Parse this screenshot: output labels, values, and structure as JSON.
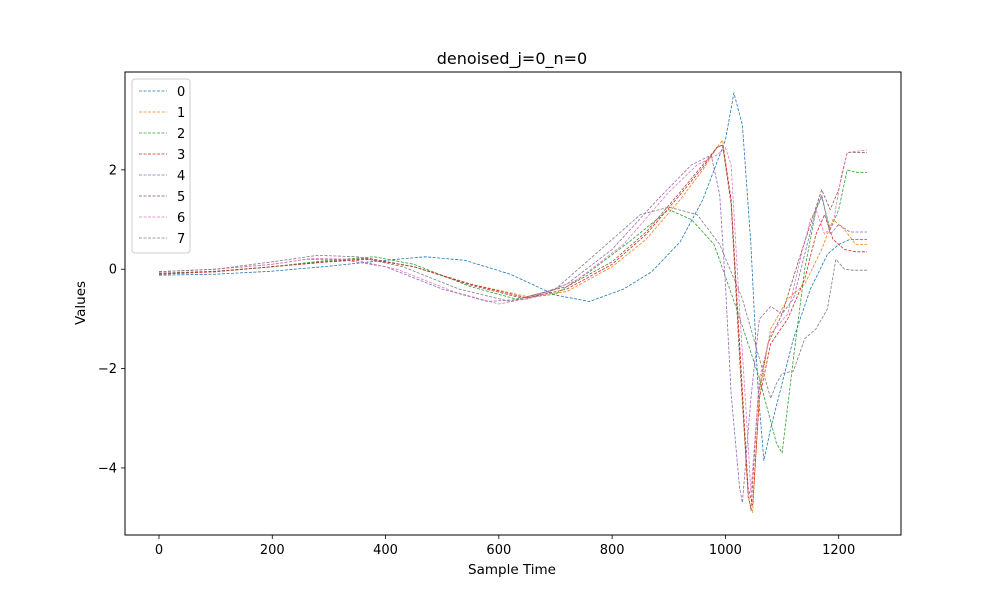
{
  "chart_data": {
    "type": "line",
    "title": "denoised_j=0_n=0",
    "xlabel": "Sample Time",
    "ylabel": "Values",
    "xlim": [
      -60,
      1310
    ],
    "ylim": [
      -5.35,
      3.97
    ],
    "xticks": [
      0,
      200,
      400,
      600,
      800,
      1000,
      1200
    ],
    "xtick_labels": [
      "0",
      "200",
      "400",
      "600",
      "800",
      "1000",
      "1200"
    ],
    "yticks": [
      2,
      0,
      -2,
      -4
    ],
    "ytick_labels": [
      "2",
      "0",
      "−2",
      "−4"
    ],
    "grid": false,
    "legend_position": "top-left",
    "line_style": "dashed",
    "series": [
      {
        "name": "0",
        "color": "#1f77b4",
        "points": [
          [
            0,
            -0.12
          ],
          [
            100,
            -0.1
          ],
          [
            200,
            -0.04
          ],
          [
            300,
            0.06
          ],
          [
            400,
            0.18
          ],
          [
            470,
            0.25
          ],
          [
            540,
            0.18
          ],
          [
            620,
            -0.1
          ],
          [
            700,
            -0.52
          ],
          [
            760,
            -0.65
          ],
          [
            820,
            -0.4
          ],
          [
            870,
            -0.05
          ],
          [
            920,
            0.55
          ],
          [
            960,
            1.4
          ],
          [
            1000,
            2.6
          ],
          [
            1015,
            3.55
          ],
          [
            1030,
            2.9
          ],
          [
            1045,
            0.5
          ],
          [
            1058,
            -2.5
          ],
          [
            1068,
            -3.85
          ],
          [
            1080,
            -3.2
          ],
          [
            1100,
            -2.3
          ],
          [
            1120,
            -1.4
          ],
          [
            1150,
            -0.4
          ],
          [
            1180,
            0.3
          ],
          [
            1200,
            0.5
          ],
          [
            1220,
            0.6
          ],
          [
            1250,
            0.6
          ]
        ]
      },
      {
        "name": "1",
        "color": "#ff7f0e",
        "points": [
          [
            0,
            -0.1
          ],
          [
            100,
            -0.05
          ],
          [
            200,
            0.05
          ],
          [
            300,
            0.15
          ],
          [
            370,
            0.2
          ],
          [
            450,
            0.05
          ],
          [
            550,
            -0.3
          ],
          [
            650,
            -0.55
          ],
          [
            720,
            -0.45
          ],
          [
            800,
            0.05
          ],
          [
            860,
            0.6
          ],
          [
            920,
            1.4
          ],
          [
            960,
            2.0
          ],
          [
            985,
            2.45
          ],
          [
            995,
            2.6
          ],
          [
            1010,
            1.4
          ],
          [
            1025,
            -1.6
          ],
          [
            1040,
            -4.6
          ],
          [
            1048,
            -4.9
          ],
          [
            1060,
            -2.5
          ],
          [
            1080,
            -1.2
          ],
          [
            1110,
            -0.6
          ],
          [
            1140,
            -0.3
          ],
          [
            1170,
            0.4
          ],
          [
            1190,
            1.0
          ],
          [
            1210,
            0.8
          ],
          [
            1230,
            0.5
          ],
          [
            1250,
            0.5
          ]
        ]
      },
      {
        "name": "2",
        "color": "#2ca02c",
        "points": [
          [
            0,
            -0.08
          ],
          [
            100,
            -0.05
          ],
          [
            200,
            0.05
          ],
          [
            300,
            0.18
          ],
          [
            380,
            0.25
          ],
          [
            450,
            0.1
          ],
          [
            550,
            -0.35
          ],
          [
            630,
            -0.6
          ],
          [
            700,
            -0.5
          ],
          [
            760,
            -0.05
          ],
          [
            830,
            0.55
          ],
          [
            900,
            1.2
          ],
          [
            940,
            1.0
          ],
          [
            980,
            0.5
          ],
          [
            1020,
            -0.8
          ],
          [
            1060,
            -2.2
          ],
          [
            1090,
            -3.5
          ],
          [
            1100,
            -3.7
          ],
          [
            1120,
            -1.8
          ],
          [
            1140,
            0.0
          ],
          [
            1160,
            1.2
          ],
          [
            1170,
            1.45
          ],
          [
            1185,
            0.8
          ],
          [
            1200,
            1.2
          ],
          [
            1215,
            2.0
          ],
          [
            1230,
            1.95
          ],
          [
            1250,
            1.95
          ]
        ]
      },
      {
        "name": "3",
        "color": "#d62728",
        "points": [
          [
            0,
            -0.1
          ],
          [
            100,
            -0.05
          ],
          [
            200,
            0.05
          ],
          [
            300,
            0.15
          ],
          [
            370,
            0.2
          ],
          [
            450,
            0.05
          ],
          [
            550,
            -0.3
          ],
          [
            650,
            -0.58
          ],
          [
            720,
            -0.4
          ],
          [
            800,
            0.1
          ],
          [
            860,
            0.7
          ],
          [
            920,
            1.5
          ],
          [
            960,
            2.05
          ],
          [
            985,
            2.45
          ],
          [
            995,
            2.5
          ],
          [
            1010,
            1.4
          ],
          [
            1025,
            -1.5
          ],
          [
            1040,
            -4.4
          ],
          [
            1048,
            -4.75
          ],
          [
            1060,
            -2.6
          ],
          [
            1080,
            -1.5
          ],
          [
            1110,
            -1.0
          ],
          [
            1140,
            -0.2
          ],
          [
            1160,
            0.7
          ],
          [
            1175,
            1.1
          ],
          [
            1190,
            0.6
          ],
          [
            1210,
            0.4
          ],
          [
            1230,
            0.35
          ],
          [
            1250,
            0.35
          ]
        ]
      },
      {
        "name": "4",
        "color": "#9467bd",
        "points": [
          [
            0,
            -0.05
          ],
          [
            100,
            0.0
          ],
          [
            200,
            0.1
          ],
          [
            260,
            0.2
          ],
          [
            320,
            0.2
          ],
          [
            400,
            0.05
          ],
          [
            500,
            -0.4
          ],
          [
            580,
            -0.65
          ],
          [
            650,
            -0.6
          ],
          [
            720,
            -0.3
          ],
          [
            800,
            0.4
          ],
          [
            880,
            1.4
          ],
          [
            940,
            2.1
          ],
          [
            975,
            2.3
          ],
          [
            990,
            1.5
          ],
          [
            1000,
            -0.3
          ],
          [
            1010,
            -2.5
          ],
          [
            1025,
            -4.4
          ],
          [
            1030,
            -4.7
          ],
          [
            1045,
            -2.6
          ],
          [
            1060,
            -1.0
          ],
          [
            1080,
            -0.75
          ],
          [
            1100,
            -0.9
          ],
          [
            1120,
            -0.6
          ],
          [
            1140,
            0.3
          ],
          [
            1160,
            1.2
          ],
          [
            1170,
            1.5
          ],
          [
            1185,
            0.7
          ],
          [
            1200,
            0.9
          ],
          [
            1220,
            0.75
          ],
          [
            1250,
            0.75
          ]
        ]
      },
      {
        "name": "5",
        "color": "#8c564b",
        "points": [
          [
            0,
            -0.08
          ],
          [
            100,
            -0.04
          ],
          [
            200,
            0.05
          ],
          [
            300,
            0.16
          ],
          [
            370,
            0.22
          ],
          [
            450,
            0.05
          ],
          [
            550,
            -0.32
          ],
          [
            640,
            -0.58
          ],
          [
            720,
            -0.35
          ],
          [
            800,
            0.15
          ],
          [
            860,
            0.75
          ],
          [
            920,
            1.55
          ],
          [
            960,
            2.1
          ],
          [
            985,
            2.45
          ],
          [
            995,
            2.5
          ],
          [
            1010,
            1.3
          ],
          [
            1025,
            -1.8
          ],
          [
            1040,
            -4.5
          ],
          [
            1045,
            -4.85
          ],
          [
            1058,
            -2.5
          ],
          [
            1075,
            -1.5
          ],
          [
            1100,
            -0.9
          ],
          [
            1130,
            0.2
          ],
          [
            1150,
            0.9
          ],
          [
            1170,
            1.6
          ],
          [
            1185,
            1.2
          ],
          [
            1200,
            1.6
          ],
          [
            1215,
            2.35
          ],
          [
            1250,
            2.35
          ]
        ]
      },
      {
        "name": "6",
        "color": "#e377c2",
        "points": [
          [
            0,
            -0.05
          ],
          [
            100,
            0.0
          ],
          [
            200,
            0.1
          ],
          [
            270,
            0.22
          ],
          [
            340,
            0.2
          ],
          [
            420,
            0.0
          ],
          [
            520,
            -0.45
          ],
          [
            600,
            -0.7
          ],
          [
            670,
            -0.55
          ],
          [
            740,
            -0.2
          ],
          [
            820,
            0.5
          ],
          [
            900,
            1.55
          ],
          [
            950,
            2.1
          ],
          [
            985,
            2.3
          ],
          [
            1000,
            2.45
          ],
          [
            1010,
            2.1
          ],
          [
            1025,
            -0.8
          ],
          [
            1040,
            -3.5
          ],
          [
            1045,
            -4.5
          ],
          [
            1060,
            -2.2
          ],
          [
            1080,
            -1.3
          ],
          [
            1110,
            -0.9
          ],
          [
            1130,
            0.1
          ],
          [
            1150,
            1.0
          ],
          [
            1160,
            1.2
          ],
          [
            1175,
            0.7
          ],
          [
            1190,
            0.9
          ],
          [
            1205,
            1.9
          ],
          [
            1215,
            2.35
          ],
          [
            1250,
            2.4
          ]
        ]
      },
      {
        "name": "7",
        "color": "#7f7f7f",
        "points": [
          [
            0,
            -0.05
          ],
          [
            100,
            0.0
          ],
          [
            200,
            0.15
          ],
          [
            280,
            0.28
          ],
          [
            350,
            0.25
          ],
          [
            430,
            0.05
          ],
          [
            530,
            -0.4
          ],
          [
            620,
            -0.65
          ],
          [
            700,
            -0.4
          ],
          [
            780,
            0.4
          ],
          [
            850,
            1.1
          ],
          [
            900,
            1.25
          ],
          [
            950,
            1.1
          ],
          [
            990,
            0.5
          ],
          [
            1030,
            -0.6
          ],
          [
            1060,
            -1.8
          ],
          [
            1080,
            -2.6
          ],
          [
            1090,
            -2.3
          ],
          [
            1100,
            -2.1
          ],
          [
            1120,
            -2.05
          ],
          [
            1140,
            -1.4
          ],
          [
            1160,
            -1.2
          ],
          [
            1180,
            -0.8
          ],
          [
            1195,
            0.2
          ],
          [
            1210,
            0.0
          ],
          [
            1225,
            -0.02
          ],
          [
            1250,
            -0.02
          ]
        ]
      }
    ]
  }
}
